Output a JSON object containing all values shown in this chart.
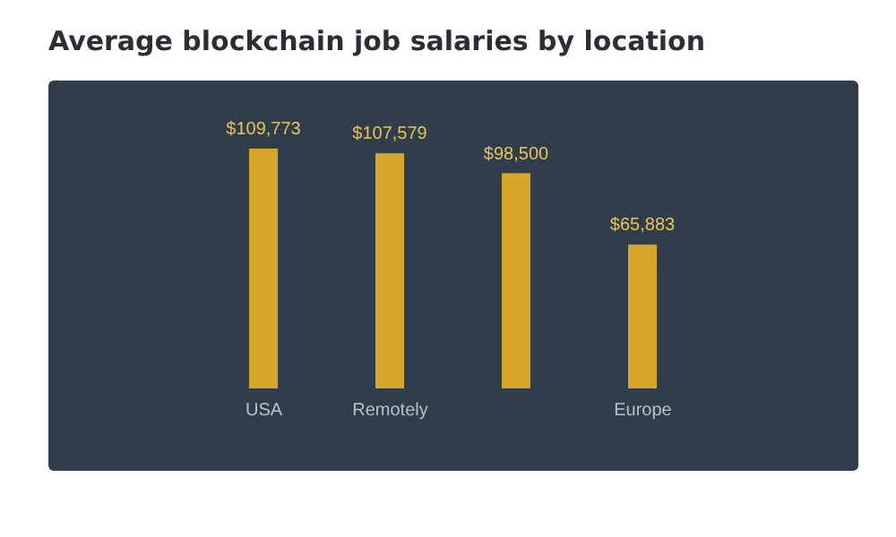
{
  "chart_data": {
    "type": "bar",
    "title": "Average blockchain job salaries by location",
    "categories": [
      "USA",
      "Remotely",
      null,
      "Europe"
    ],
    "values": [
      109773,
      107579,
      98500,
      65883
    ],
    "value_labels": [
      "$109,773",
      "$107,579",
      "$98,500",
      "$65,883"
    ],
    "color": "#d6a62c",
    "grid": false,
    "legend": false
  }
}
